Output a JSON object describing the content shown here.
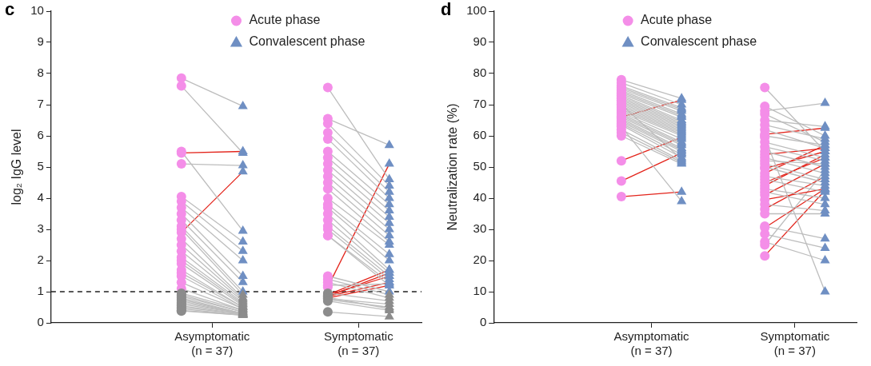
{
  "chart_data": [
    {
      "type": "scatter",
      "title": "c",
      "y_label": "log₂ IgG level",
      "categories": [
        [
          "Asymptomatic",
          "(n = 37)"
        ],
        [
          "Symptomatic",
          "(n = 37)"
        ]
      ],
      "ylim": [
        0,
        10
      ],
      "yticks": [
        0,
        1,
        2,
        3,
        4,
        5,
        6,
        7,
        8,
        9,
        10
      ],
      "grid": false,
      "legend": "top",
      "series": [
        {
          "name": "Acute phase",
          "color": "#f48ee8",
          "marker": "circle",
          "values": [
            [
              7.85,
              7.6,
              5.5,
              5.45,
              5.1,
              4.05,
              3.9,
              3.7,
              3.5,
              3.3,
              3.1,
              3.0,
              2.9,
              2.7,
              2.5,
              2.3,
              2.1,
              2.0,
              1.9,
              1.7,
              1.6,
              1.5,
              1.3,
              1.1,
              0.95,
              0.9,
              0.85,
              0.8,
              0.75,
              0.7,
              0.65,
              0.6,
              0.55,
              0.5,
              0.45,
              0.4,
              0.38
            ],
            [
              7.55,
              6.55,
              6.4,
              6.1,
              5.9,
              5.5,
              5.3,
              5.1,
              4.9,
              4.7,
              4.5,
              4.3,
              4.0,
              3.8,
              3.7,
              3.5,
              3.3,
              3.1,
              3.0,
              2.8,
              2.8,
              1.5,
              1.4,
              1.3,
              1.2,
              1.15,
              0.95,
              0.9,
              0.88,
              0.85,
              0.85,
              0.82,
              0.8,
              0.78,
              0.75,
              0.7,
              0.35
            ]
          ]
        },
        {
          "name": "Convalescent phase",
          "color": "#6f8fc3",
          "marker": "triangle",
          "values": [
            [
              6.95,
              5.45,
              2.95,
              5.5,
              5.05,
              2.6,
              2.3,
              2.0,
              1.5,
              1.3,
              1.0,
              0.9,
              4.85,
              0.8,
              0.75,
              0.7,
              0.65,
              0.6,
              0.55,
              0.5,
              0.5,
              0.45,
              0.45,
              0.4,
              0.4,
              0.35,
              0.35,
              0.3,
              0.3,
              0.3,
              0.3,
              0.3,
              0.28,
              0.28,
              0.25,
              0.25,
              0.25
            ],
            [
              4.6,
              5.7,
              4.4,
              4.2,
              4.0,
              3.8,
              3.6,
              3.4,
              3.2,
              3.0,
              2.8,
              2.6,
              2.5,
              2.2,
              2.0,
              1.7,
              1.6,
              1.5,
              1.4,
              1.3,
              1.2,
              1.0,
              0.9,
              0.8,
              1.25,
              5.1,
              0.7,
              1.7,
              1.5,
              1.6,
              1.3,
              0.45,
              1.2,
              0.6,
              0.5,
              0.4,
              0.2
            ]
          ]
        }
      ],
      "pair_lines": {
        "colors": [
          [
            "#bdbdbd",
            "#bdbdbd",
            "#bdbdbd",
            "#e3241b",
            "#bdbdbd",
            "#bdbdbd",
            "#bdbdbd",
            "#bdbdbd",
            "#bdbdbd",
            "#bdbdbd",
            "#bdbdbd",
            "#bdbdbd",
            "#e3241b",
            "#bdbdbd",
            "#bdbdbd",
            "#bdbdbd",
            "#bdbdbd",
            "#bdbdbd",
            "#bdbdbd",
            "#bdbdbd",
            "#bdbdbd",
            "#bdbdbd",
            "#bdbdbd",
            "#bdbdbd",
            "#bdbdbd",
            "#bdbdbd",
            "#bdbdbd",
            "#bdbdbd",
            "#bdbdbd",
            "#bdbdbd",
            "#bdbdbd",
            "#bdbdbd",
            "#bdbdbd",
            "#bdbdbd",
            "#bdbdbd",
            "#bdbdbd",
            "#bdbdbd"
          ],
          [
            "#bdbdbd",
            "#bdbdbd",
            "#bdbdbd",
            "#bdbdbd",
            "#bdbdbd",
            "#bdbdbd",
            "#bdbdbd",
            "#bdbdbd",
            "#bdbdbd",
            "#bdbdbd",
            "#bdbdbd",
            "#bdbdbd",
            "#bdbdbd",
            "#bdbdbd",
            "#bdbdbd",
            "#bdbdbd",
            "#bdbdbd",
            "#bdbdbd",
            "#bdbdbd",
            "#bdbdbd",
            "#bdbdbd",
            "#bdbdbd",
            "#bdbdbd",
            "#bdbdbd",
            "#bdbdbd",
            "#e3241b",
            "#bdbdbd",
            "#e3241b",
            "#e3241b",
            "#e3241b",
            "#e3241b",
            "#bdbdbd",
            "#e3241b",
            "#bdbdbd",
            "#bdbdbd",
            "#bdbdbd",
            "#bdbdbd"
          ]
        ]
      },
      "reference_line": {
        "value": 1,
        "line_style": "dashed",
        "color": "#222222",
        "below_color": "#8c8c8c"
      }
    },
    {
      "type": "scatter",
      "title": "d",
      "y_label": "Neutralization rate (%)",
      "categories": [
        [
          "Asymptomatic",
          "(n = 37)"
        ],
        [
          "Symptomatic",
          "(n = 37)"
        ]
      ],
      "ylim": [
        0,
        100
      ],
      "yticks": [
        0,
        10,
        20,
        30,
        40,
        50,
        60,
        70,
        80,
        90,
        100
      ],
      "grid": false,
      "legend": "top",
      "series": [
        {
          "name": "Acute phase",
          "color": "#f48ee8",
          "marker": "circle",
          "values": [
            [
              78,
              77,
              76,
              75.5,
              75,
              74.5,
              74,
              73.5,
              73,
              72.5,
              72,
              71.5,
              71,
              70.5,
              70,
              69.5,
              69,
              68.5,
              68,
              67.5,
              67,
              66.5,
              66,
              65.5,
              65,
              64.5,
              64,
              63.5,
              63,
              62,
              61,
              60,
              52,
              45.5,
              40.5,
              66,
              70
            ],
            [
              75.5,
              69.5,
              68,
              67,
              65,
              63.5,
              62,
              60.5,
              60,
              59.5,
              58,
              56.5,
              55,
              54,
              53,
              52,
              51,
              50,
              49.5,
              48,
              47,
              46,
              45,
              44,
              43,
              42,
              41,
              39.5,
              38,
              36.5,
              35,
              31,
              30.5,
              28.5,
              26,
              25,
              21.5
            ]
          ]
        },
        {
          "name": "Convalescent phase",
          "color": "#6f8fc3",
          "marker": "triangle",
          "values": [
            [
              72,
              70,
              69,
              68.5,
              68,
              67,
              66.5,
              66,
              65,
              64.5,
              64,
              63.5,
              63,
              62.5,
              62,
              61.5,
              61,
              60.5,
              60,
              59,
              58,
              57.5,
              57,
              56,
              55.5,
              55,
              54,
              53,
              39,
              52,
              51.5,
              51,
              59.5,
              54.5,
              42,
              71.5,
              52.5
            ],
            [
              55,
              60,
              70.5,
              58,
              63,
              59,
              56,
              62.5,
              57,
              10,
              53,
              52,
              50,
              56,
              48,
              51,
              46,
              45,
              55,
              57,
              44,
              42,
              53,
              54,
              40,
              38,
              51,
              43,
              36,
              47,
              35,
              27,
              43,
              24,
              20,
              49,
              42.5
            ]
          ]
        }
      ],
      "pair_lines": {
        "colors": [
          [
            "#bdbdbd",
            "#bdbdbd",
            "#bdbdbd",
            "#bdbdbd",
            "#bdbdbd",
            "#bdbdbd",
            "#bdbdbd",
            "#bdbdbd",
            "#bdbdbd",
            "#bdbdbd",
            "#bdbdbd",
            "#bdbdbd",
            "#bdbdbd",
            "#bdbdbd",
            "#bdbdbd",
            "#bdbdbd",
            "#bdbdbd",
            "#bdbdbd",
            "#bdbdbd",
            "#bdbdbd",
            "#bdbdbd",
            "#bdbdbd",
            "#bdbdbd",
            "#bdbdbd",
            "#bdbdbd",
            "#bdbdbd",
            "#bdbdbd",
            "#bdbdbd",
            "#bdbdbd",
            "#bdbdbd",
            "#bdbdbd",
            "#bdbdbd",
            "#e3241b",
            "#e3241b",
            "#e3241b",
            "#e3241b",
            "#bdbdbd"
          ],
          [
            "#bdbdbd",
            "#bdbdbd",
            "#bdbdbd",
            "#bdbdbd",
            "#bdbdbd",
            "#bdbdbd",
            "#bdbdbd",
            "#e3241b",
            "#bdbdbd",
            "#bdbdbd",
            "#bdbdbd",
            "#bdbdbd",
            "#bdbdbd",
            "#e3241b",
            "#bdbdbd",
            "#bdbdbd",
            "#bdbdbd",
            "#bdbdbd",
            "#e3241b",
            "#e3241b",
            "#bdbdbd",
            "#bdbdbd",
            "#e3241b",
            "#e3241b",
            "#bdbdbd",
            "#bdbdbd",
            "#e3241b",
            "#e3241b",
            "#bdbdbd",
            "#e3241b",
            "#bdbdbd",
            "#bdbdbd",
            "#e3241b",
            "#bdbdbd",
            "#bdbdbd",
            "#bdbdbd",
            "#e3241b"
          ]
        ]
      }
    }
  ]
}
